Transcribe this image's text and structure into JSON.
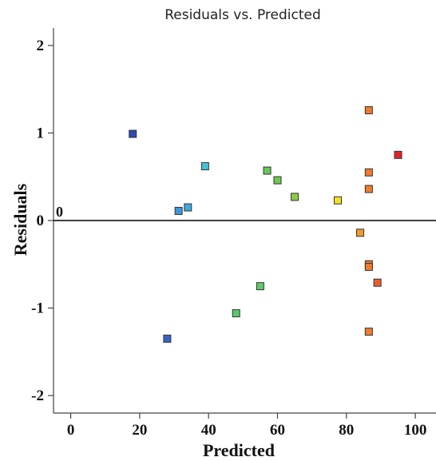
{
  "chart_data": {
    "type": "scatter",
    "title": "Residuals vs. Predicted",
    "xlabel": "Predicted",
    "ylabel": "Residuals",
    "xlim": [
      -5,
      106
    ],
    "ylim": [
      -2.2,
      2.2
    ],
    "xticks": [
      0,
      20,
      40,
      60,
      80,
      100
    ],
    "yticks": [
      -2,
      -1,
      0,
      1,
      2
    ],
    "xtick_labels": [
      "0",
      "20",
      "40",
      "60",
      "80",
      "100"
    ],
    "ytick_labels": [
      "-2",
      "-1",
      "0",
      "1",
      "2"
    ],
    "reference_line": {
      "y": 0,
      "label": "0"
    },
    "grid": false,
    "legend": "none",
    "marker": "square",
    "points": [
      {
        "x": 18,
        "y": 0.99,
        "color": "#2e4bb0"
      },
      {
        "x": 28,
        "y": -1.35,
        "color": "#3a62c6"
      },
      {
        "x": 31.3,
        "y": 0.11,
        "color": "#3f95d9"
      },
      {
        "x": 34,
        "y": 0.15,
        "color": "#3fa9e0"
      },
      {
        "x": 39,
        "y": 0.62,
        "color": "#45c2d3"
      },
      {
        "x": 48,
        "y": -1.06,
        "color": "#59c86d"
      },
      {
        "x": 55,
        "y": -0.75,
        "color": "#5fca6c"
      },
      {
        "x": 57,
        "y": 0.57,
        "color": "#66c85a"
      },
      {
        "x": 60,
        "y": 0.46,
        "color": "#6fc84f"
      },
      {
        "x": 65,
        "y": 0.27,
        "color": "#8ecb45"
      },
      {
        "x": 77.5,
        "y": 0.23,
        "color": "#f0e027"
      },
      {
        "x": 84,
        "y": -0.14,
        "color": "#f29a32"
      },
      {
        "x": 86.5,
        "y": 1.26,
        "color": "#ef7b2f"
      },
      {
        "x": 86.5,
        "y": 0.55,
        "color": "#ef7b2f"
      },
      {
        "x": 86.5,
        "y": 0.36,
        "color": "#ef7b2f"
      },
      {
        "x": 86.5,
        "y": -0.5,
        "color": "#ef7b2f"
      },
      {
        "x": 86.5,
        "y": -0.53,
        "color": "#ef7b2f"
      },
      {
        "x": 86.5,
        "y": -1.27,
        "color": "#ef7b2f"
      },
      {
        "x": 89,
        "y": -0.71,
        "color": "#ec5f2a"
      },
      {
        "x": 95,
        "y": 0.75,
        "color": "#e0242a"
      }
    ]
  }
}
